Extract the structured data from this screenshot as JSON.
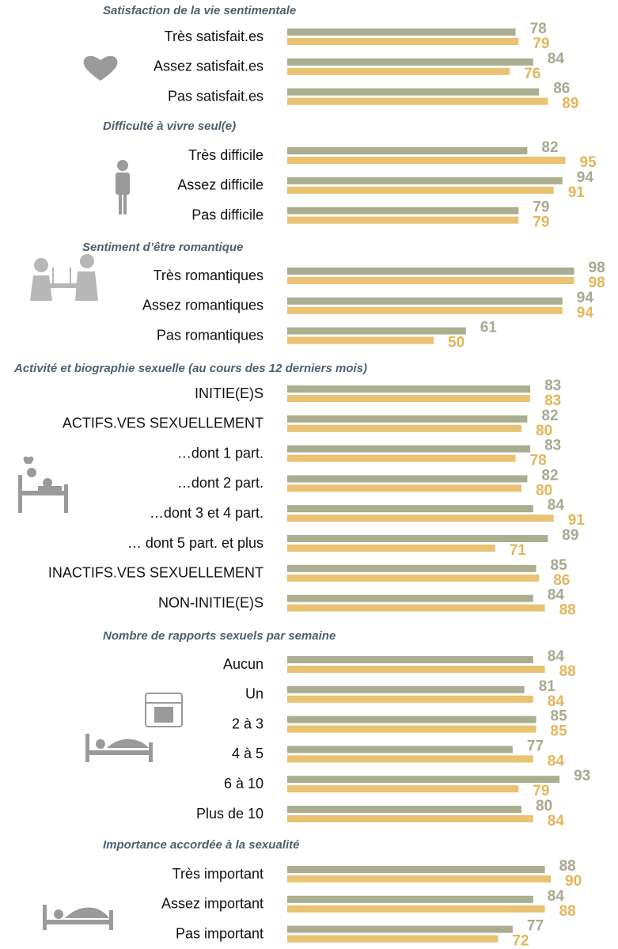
{
  "chart_data": [
    {
      "type": "bar",
      "orientation": "horizontal",
      "title": "Satisfaction de la vie sentimentale",
      "categories": [
        "Très satisfait.es",
        "Assez satisfait.es",
        "Pas satisfait.es"
      ],
      "series": [
        {
          "color": "#aaad8f",
          "values": [
            78,
            84,
            86
          ]
        },
        {
          "color": "#e9c272",
          "values": [
            79,
            76,
            89
          ]
        }
      ]
    },
    {
      "type": "bar",
      "orientation": "horizontal",
      "title": "Difficulté à vivre seul(e)",
      "categories": [
        "Très difficile",
        "Assez difficile",
        "Pas difficile"
      ],
      "series": [
        {
          "color": "#aaad8f",
          "values": [
            82,
            94,
            79
          ]
        },
        {
          "color": "#e9c272",
          "values": [
            95,
            91,
            79
          ]
        }
      ]
    },
    {
      "type": "bar",
      "orientation": "horizontal",
      "title": "Sentiment d’être romantique",
      "categories": [
        "Très romantiques",
        "Assez romantiques",
        "Pas romantiques"
      ],
      "series": [
        {
          "color": "#aaad8f",
          "values": [
            98,
            94,
            61
          ]
        },
        {
          "color": "#e9c272",
          "values": [
            98,
            94,
            50
          ]
        }
      ]
    },
    {
      "type": "bar",
      "orientation": "horizontal",
      "title": "Activité et biographie sexuelle (au cours des 12 derniers mois)",
      "categories": [
        "INITIE(E)S",
        "ACTIFS.VES SEXUELLEMENT",
        "…dont 1 part.",
        "…dont 2 part.",
        "…dont 3 et 4 part.",
        "… dont 5 part. et plus",
        "INACTIFS.VES SEXUELLEMENT",
        "NON-INITIE(E)S"
      ],
      "series": [
        {
          "color": "#aaad8f",
          "values": [
            83,
            82,
            83,
            82,
            84,
            89,
            85,
            84
          ]
        },
        {
          "color": "#e9c272",
          "values": [
            83,
            80,
            78,
            80,
            91,
            71,
            86,
            88
          ]
        }
      ]
    },
    {
      "type": "bar",
      "orientation": "horizontal",
      "title": "Nombre de rapports sexuels par semaine",
      "categories": [
        "Aucun",
        "Un",
        "2 à 3",
        "4 à 5",
        "6 à 10",
        "Plus de 10"
      ],
      "series": [
        {
          "color": "#aaad8f",
          "values": [
            84,
            81,
            85,
            77,
            93,
            80
          ]
        },
        {
          "color": "#e9c272",
          "values": [
            88,
            84,
            85,
            84,
            79,
            84
          ]
        }
      ]
    },
    {
      "type": "bar",
      "orientation": "horizontal",
      "title": "Importance accordée à la sexualité",
      "categories": [
        "Très important",
        "Assez important",
        "Pas important"
      ],
      "series": [
        {
          "color": "#aaad8f",
          "values": [
            88,
            84,
            77
          ]
        },
        {
          "color": "#e9c272",
          "values": [
            90,
            88,
            72
          ]
        }
      ]
    }
  ]
}
